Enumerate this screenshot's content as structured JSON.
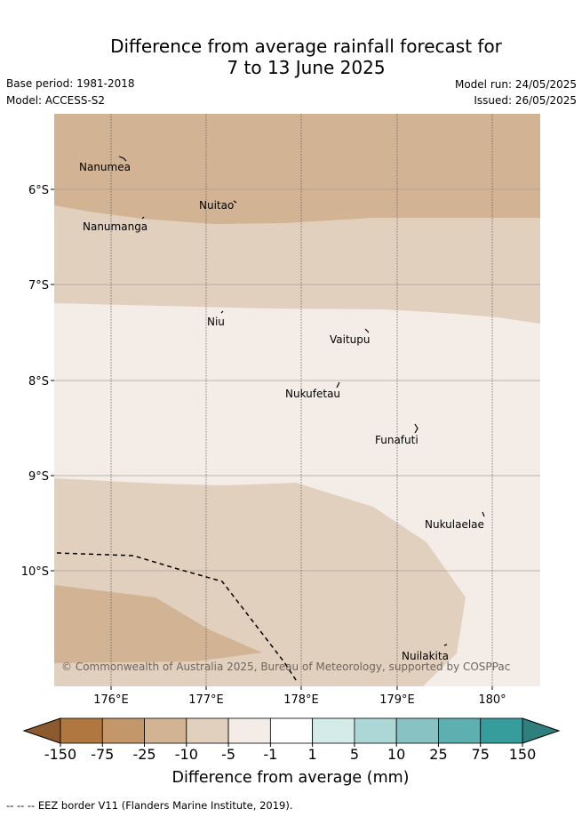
{
  "header": {
    "title_line1": "Difference from average rainfall forecast for",
    "title_line2": "7 to 13 June 2025",
    "base_period": "Base period: 1981-2018",
    "model": "Model: ACCESS-S2",
    "model_run": "Model run: 24/05/2025",
    "issued": "Issued: 26/05/2025"
  },
  "map": {
    "lat_labels": [
      "6°S",
      "7°S",
      "8°S",
      "9°S",
      "10°S"
    ],
    "lon_labels": [
      "176°E",
      "177°E",
      "178°E",
      "179°E",
      "180°"
    ],
    "places": [
      "Nanumea",
      "Nuitao",
      "Nanumanga",
      "Niu",
      "Vaitupu",
      "Nukufetau",
      "Funafuti",
      "Nukulaelae",
      "Nuilakita"
    ],
    "copyright": "© Commonwealth of Australia 2025, Bureau of Meteorology, supported by COSPPac"
  },
  "colorbar": {
    "ticks": [
      "-150",
      "-75",
      "-25",
      "-10",
      "-5",
      "-1",
      "1",
      "5",
      "10",
      "25",
      "75",
      "150"
    ],
    "colors": [
      "#b07840",
      "#c4976b",
      "#d2b393",
      "#e2d0be",
      "#f4ece6",
      "#ffffff",
      "#d4ebe9",
      "#acd7d6",
      "#89c2c2",
      "#5eb0b0",
      "#369d9c"
    ],
    "under_color": "#8c5a2e",
    "over_color": "#2f7f7e",
    "label": "Difference from average (mm)"
  },
  "legend": {
    "eez_text": "-- -- -- EEZ border V11 (Flanders Marine Institute, 2019)."
  }
}
